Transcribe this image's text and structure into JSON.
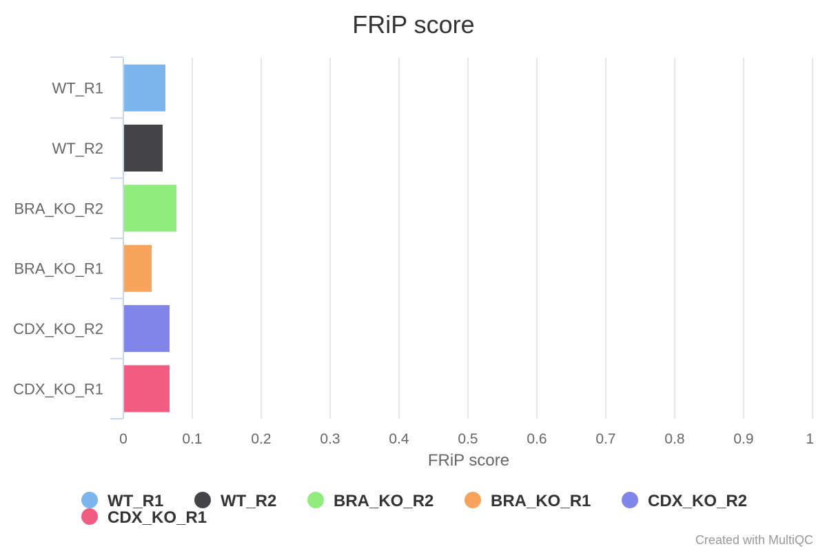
{
  "credits": "Created with MultiQC",
  "chart_data": {
    "type": "bar",
    "orientation": "horizontal",
    "title": "FRiP score",
    "xlabel": "FRiP score",
    "ylabel": "",
    "categories": [
      "WT_R1",
      "WT_R2",
      "BRA_KO_R2",
      "BRA_KO_R1",
      "CDX_KO_R2",
      "CDX_KO_R1"
    ],
    "values": [
      0.06,
      0.056,
      0.076,
      0.04,
      0.066,
      0.066
    ],
    "colors": [
      "#7cb5ec",
      "#434348",
      "#90ed7d",
      "#f7a35c",
      "#8085e9",
      "#f15c80"
    ],
    "xlim": [
      0,
      1
    ],
    "ticks": [
      "0",
      "0.1",
      "0.2",
      "0.3",
      "0.4",
      "0.5",
      "0.6",
      "0.7",
      "0.8",
      "0.9",
      "1"
    ],
    "grid": true,
    "legend": {
      "placement": "bottom",
      "entries": [
        "WT_R1",
        "WT_R2",
        "BRA_KO_R2",
        "BRA_KO_R1",
        "CDX_KO_R2",
        "CDX_KO_R1"
      ]
    }
  }
}
